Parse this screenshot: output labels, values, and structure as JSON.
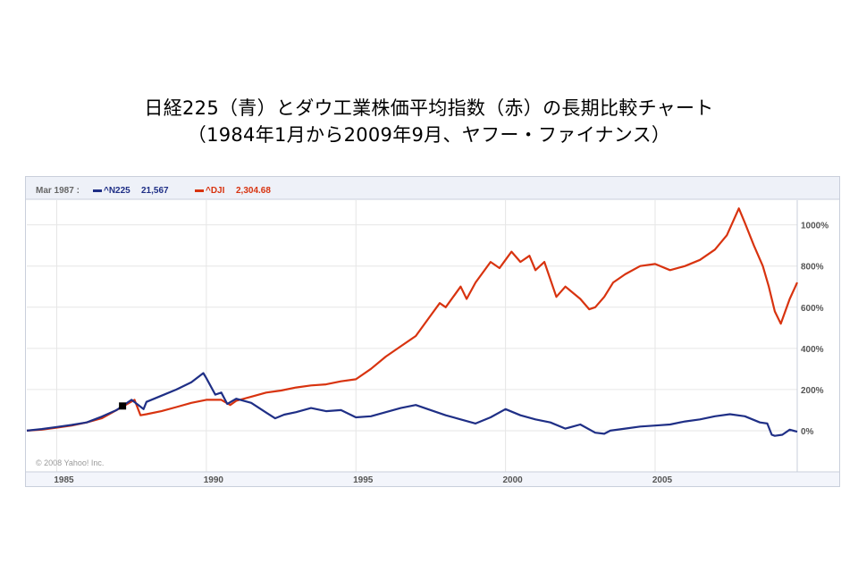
{
  "title": {
    "line1": "日経225（青）とダウ工業株価平均指数（赤）の長期比較チャート",
    "line2": "（1984年1月から2009年9月、ヤフー・ファイナンス）"
  },
  "legend": {
    "date": "Mar 1987 :",
    "series1": {
      "symbol": "^N225",
      "value": "21,567"
    },
    "series2": {
      "symbol": "^DJI",
      "value": "2,304.68"
    }
  },
  "copyright": "© 2008 Yahoo! Inc.",
  "colors": {
    "n225": "#1f2f86",
    "dji": "#d8330f",
    "grid": "#e6e6e6",
    "header_bg": "#eef1f8",
    "axis_bg": "#f3f5fb"
  },
  "chart_data": {
    "type": "line",
    "y_unit": "%",
    "y_ticks": [
      1000,
      800,
      600,
      400,
      200,
      0
    ],
    "y_tick_labels": [
      "1000%",
      "800%",
      "600%",
      "400%",
      "200%",
      "0%"
    ],
    "x_ticks": [
      1985,
      1990,
      1995,
      2000,
      2005
    ],
    "x_tick_labels": [
      "1985",
      "1990",
      "1995",
      "2000",
      "2005"
    ],
    "xlim": [
      1984.0,
      2009.75
    ],
    "ylim": [
      -200,
      1120
    ],
    "grid": true,
    "marker": {
      "x": 1987.2,
      "y": 120
    },
    "series": [
      {
        "name": "^N225",
        "x": [
          1984.0,
          1984.5,
          1985.0,
          1985.5,
          1986.0,
          1986.5,
          1987.0,
          1987.2,
          1987.5,
          1987.9,
          1988.0,
          1988.5,
          1989.0,
          1989.5,
          1989.9,
          1990.0,
          1990.3,
          1990.5,
          1990.7,
          1991.0,
          1991.5,
          1992.0,
          1992.3,
          1992.6,
          1993.0,
          1993.5,
          1994.0,
          1994.5,
          1995.0,
          1995.5,
          1996.0,
          1996.5,
          1997.0,
          1997.5,
          1998.0,
          1998.5,
          1999.0,
          1999.5,
          2000.0,
          2000.5,
          2001.0,
          2001.5,
          2002.0,
          2002.5,
          2003.0,
          2003.3,
          2003.5,
          2004.0,
          2004.5,
          2005.0,
          2005.5,
          2006.0,
          2006.5,
          2007.0,
          2007.5,
          2008.0,
          2008.5,
          2008.75,
          2008.9,
          2009.0,
          2009.25,
          2009.5,
          2009.75
        ],
        "y": [
          0,
          8,
          18,
          28,
          40,
          68,
          100,
          120,
          150,
          105,
          140,
          170,
          200,
          235,
          280,
          255,
          175,
          185,
          130,
          155,
          135,
          88,
          60,
          78,
          90,
          110,
          95,
          100,
          65,
          70,
          90,
          110,
          125,
          100,
          75,
          55,
          35,
          65,
          105,
          75,
          55,
          40,
          10,
          30,
          -10,
          -15,
          0,
          10,
          20,
          25,
          30,
          45,
          55,
          70,
          80,
          70,
          40,
          35,
          -20,
          -25,
          -20,
          5,
          -5
        ]
      },
      {
        "name": "^DJI",
        "x": [
          1984.0,
          1984.5,
          1985.0,
          1985.5,
          1986.0,
          1986.5,
          1987.0,
          1987.6,
          1987.8,
          1988.0,
          1988.5,
          1989.0,
          1989.5,
          1990.0,
          1990.5,
          1990.8,
          1991.0,
          1991.5,
          1992.0,
          1992.5,
          1993.0,
          1993.5,
          1994.0,
          1994.5,
          1995.0,
          1995.5,
          1996.0,
          1996.5,
          1997.0,
          1997.5,
          1997.8,
          1998.0,
          1998.5,
          1998.7,
          1999.0,
          1999.5,
          1999.8,
          2000.0,
          2000.2,
          2000.5,
          2000.8,
          2001.0,
          2001.3,
          2001.7,
          2002.0,
          2002.5,
          2002.8,
          2003.0,
          2003.3,
          2003.6,
          2004.0,
          2004.5,
          2005.0,
          2005.5,
          2006.0,
          2006.5,
          2007.0,
          2007.4,
          2007.8,
          2008.0,
          2008.3,
          2008.6,
          2008.8,
          2009.0,
          2009.2,
          2009.5,
          2009.75
        ],
        "y": [
          0,
          5,
          15,
          25,
          40,
          60,
          100,
          150,
          75,
          80,
          95,
          115,
          135,
          150,
          150,
          125,
          145,
          165,
          185,
          195,
          210,
          220,
          225,
          240,
          250,
          300,
          360,
          410,
          460,
          560,
          620,
          600,
          700,
          640,
          720,
          820,
          790,
          830,
          870,
          820,
          850,
          780,
          820,
          650,
          700,
          640,
          590,
          600,
          650,
          720,
          760,
          800,
          810,
          780,
          800,
          830,
          880,
          950,
          1080,
          1010,
          900,
          800,
          700,
          580,
          520,
          640,
          720
        ]
      }
    ]
  }
}
